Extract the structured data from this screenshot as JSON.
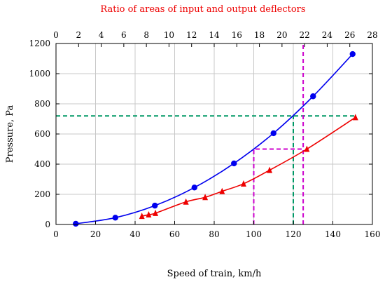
{
  "chart_data": {
    "type": "line",
    "top_title": "Ratio of areas of input and output deflectors",
    "xlabel": "Speed of train, km/h",
    "ylabel": "Pressure, Pa",
    "xlim": [
      0,
      160
    ],
    "ylim": [
      0,
      1200
    ],
    "top_xlim": [
      0,
      28
    ],
    "x_ticks": [
      "0",
      "20",
      "40",
      "60",
      "80",
      "100",
      "120",
      "140",
      "160"
    ],
    "y_ticks": [
      "0",
      "200",
      "400",
      "600",
      "800",
      "1000",
      "1200"
    ],
    "top_ticks": [
      "0",
      "2",
      "4",
      "6",
      "8",
      "10",
      "12",
      "14",
      "16",
      "18",
      "20",
      "22",
      "24",
      "26",
      "28"
    ],
    "grid": true,
    "colors": {
      "blue": "#0000ee",
      "red": "#ee0000",
      "green_dash": "#009966",
      "magenta_dash": "#cc00cc",
      "top_title": "#ee0000",
      "grid": "#c8c8c8"
    },
    "series": [
      {
        "marker": "circle",
        "color": "#0000ee",
        "axis": "bottom",
        "x": [
          10,
          30,
          50,
          70,
          90,
          110,
          130,
          150
        ],
        "y": [
          5,
          45,
          125,
          245,
          405,
          605,
          850,
          1130
        ]
      },
      {
        "marker": "triangle",
        "color": "#ee0000",
        "axis": "top",
        "x": [
          7.6,
          8.2,
          8.8,
          11.5,
          13.2,
          14.7,
          16.6,
          18.9,
          22.2,
          26.5
        ],
        "y": [
          55,
          65,
          75,
          150,
          180,
          220,
          270,
          360,
          500,
          710
        ]
      }
    ],
    "reference_lines": [
      {
        "style": "dashed",
        "color": "#009966",
        "points": [
          [
            0,
            720
          ],
          [
            151,
            720
          ]
        ]
      },
      {
        "style": "dashed",
        "color": "#009966",
        "points": [
          [
            120,
            0
          ],
          [
            120,
            720
          ]
        ]
      },
      {
        "style": "dashed",
        "color": "#cc00cc",
        "points": [
          [
            100,
            0
          ],
          [
            100,
            500
          ],
          [
            125,
            500
          ]
        ]
      },
      {
        "style": "dashed",
        "color": "#cc00cc",
        "points": [
          [
            125,
            0
          ],
          [
            125,
            1200
          ]
        ]
      }
    ]
  }
}
